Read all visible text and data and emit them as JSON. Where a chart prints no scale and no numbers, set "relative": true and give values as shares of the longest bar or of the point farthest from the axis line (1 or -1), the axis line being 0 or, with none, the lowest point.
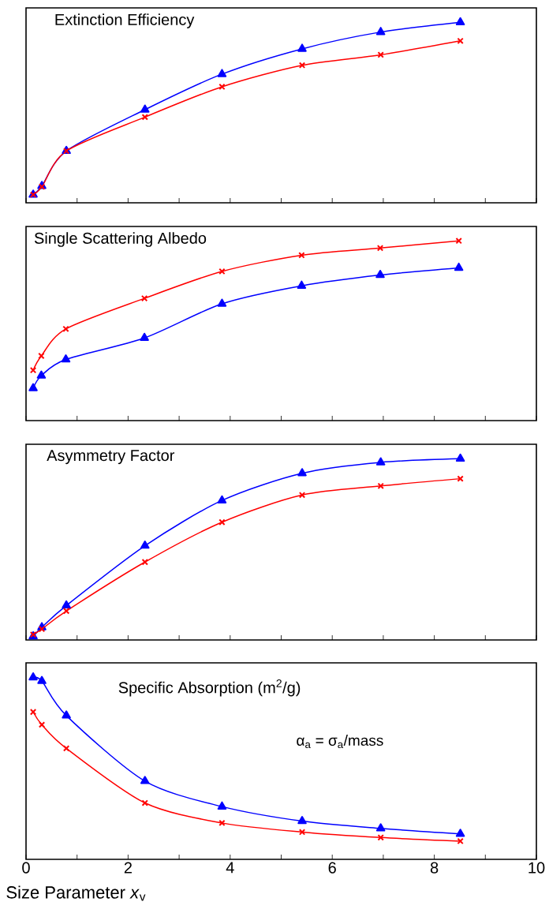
{
  "chart_data": [
    {
      "type": "line",
      "title": "Extinction Efficiency",
      "relative": true,
      "x": [
        0.14,
        0.31,
        0.79,
        2.33,
        3.84,
        5.41,
        6.95,
        8.51
      ],
      "xlim": [
        0,
        10
      ],
      "xticks": [
        0,
        {
          "value": 1,
          "label": null
        },
        2,
        {
          "value": 3,
          "label": null
        },
        4,
        {
          "value": 5,
          "label": null
        },
        6,
        {
          "value": 7,
          "label": null
        },
        8,
        {
          "value": 9,
          "label": null
        },
        10
      ],
      "tick_labels": false,
      "series": [
        {
          "color": "#0000ff",
          "marker": "triangle",
          "values": [
            0.045,
            0.093,
            0.287,
            0.516,
            0.713,
            0.853,
            0.946,
            1.0
          ]
        },
        {
          "color": "#ff0000",
          "marker": "cross",
          "values": [
            0.045,
            0.089,
            0.287,
            0.475,
            0.643,
            0.762,
            0.82,
            0.897
          ]
        }
      ]
    },
    {
      "type": "line",
      "title": "Single Scattering Albedo",
      "relative": true,
      "x": [
        0.14,
        0.3,
        0.78,
        2.32,
        3.84,
        5.4,
        6.94,
        8.48
      ],
      "xlim": [
        0,
        10
      ],
      "xticks": [
        0,
        {
          "value": 1,
          "label": null
        },
        2,
        {
          "value": 3,
          "label": null
        },
        4,
        {
          "value": 5,
          "label": null
        },
        6,
        {
          "value": 7,
          "label": null
        },
        8,
        {
          "value": 9,
          "label": null
        },
        10
      ],
      "tick_labels": false,
      "series": [
        {
          "color": "#0000ff",
          "marker": "triangle",
          "values": [
            0.18,
            0.25,
            0.34,
            0.46,
            0.65,
            0.75,
            0.81,
            0.85
          ]
        },
        {
          "color": "#ff0000",
          "marker": "cross",
          "values": [
            0.28,
            0.36,
            0.51,
            0.68,
            0.83,
            0.92,
            0.96,
            1.0
          ]
        }
      ]
    },
    {
      "type": "line",
      "title": "Asymmetry Factor",
      "relative": true,
      "x": [
        0.14,
        0.31,
        0.79,
        2.33,
        3.84,
        5.41,
        6.95,
        8.51
      ],
      "xlim": [
        0,
        10
      ],
      "xticks": [
        0,
        {
          "value": 1,
          "label": null
        },
        2,
        {
          "value": 3,
          "label": null
        },
        4,
        {
          "value": 5,
          "label": null
        },
        6,
        {
          "value": 7,
          "label": null
        },
        8,
        {
          "value": 9,
          "label": null
        },
        10
      ],
      "tick_labels": false,
      "series": [
        {
          "color": "#0000ff",
          "marker": "triangle",
          "values": [
            0.02,
            0.07,
            0.19,
            0.52,
            0.77,
            0.92,
            0.98,
            1.0
          ]
        },
        {
          "color": "#ff0000",
          "marker": "cross",
          "values": [
            0.03,
            0.06,
            0.16,
            0.43,
            0.65,
            0.8,
            0.85,
            0.89
          ]
        }
      ]
    },
    {
      "type": "line",
      "title": "Specific Absorption  (m$^{2}$/g)",
      "xlabel": "Size Parameter *x*$_{v}$",
      "annotations": [
        "α$_{a}$ = σ$_{a}$/mass"
      ],
      "relative": true,
      "x": [
        0.14,
        0.31,
        0.79,
        2.33,
        3.84,
        5.41,
        6.95,
        8.51
      ],
      "xlim": [
        0,
        10
      ],
      "xticks": [
        0,
        {
          "value": 1,
          "label": null
        },
        2,
        {
          "value": 3,
          "label": null
        },
        4,
        {
          "value": 5,
          "label": null
        },
        6,
        {
          "value": 7,
          "label": null
        },
        8,
        {
          "value": 9,
          "label": null
        },
        10
      ],
      "tick_labels": "x",
      "series": [
        {
          "color": "#0000ff",
          "marker": "triangle",
          "values": [
            1.0,
            0.98,
            0.79,
            0.43,
            0.29,
            0.21,
            0.17,
            0.14
          ]
        },
        {
          "color": "#ff0000",
          "marker": "cross",
          "values": [
            0.81,
            0.74,
            0.61,
            0.31,
            0.2,
            0.15,
            0.12,
            0.1
          ]
        }
      ]
    }
  ]
}
